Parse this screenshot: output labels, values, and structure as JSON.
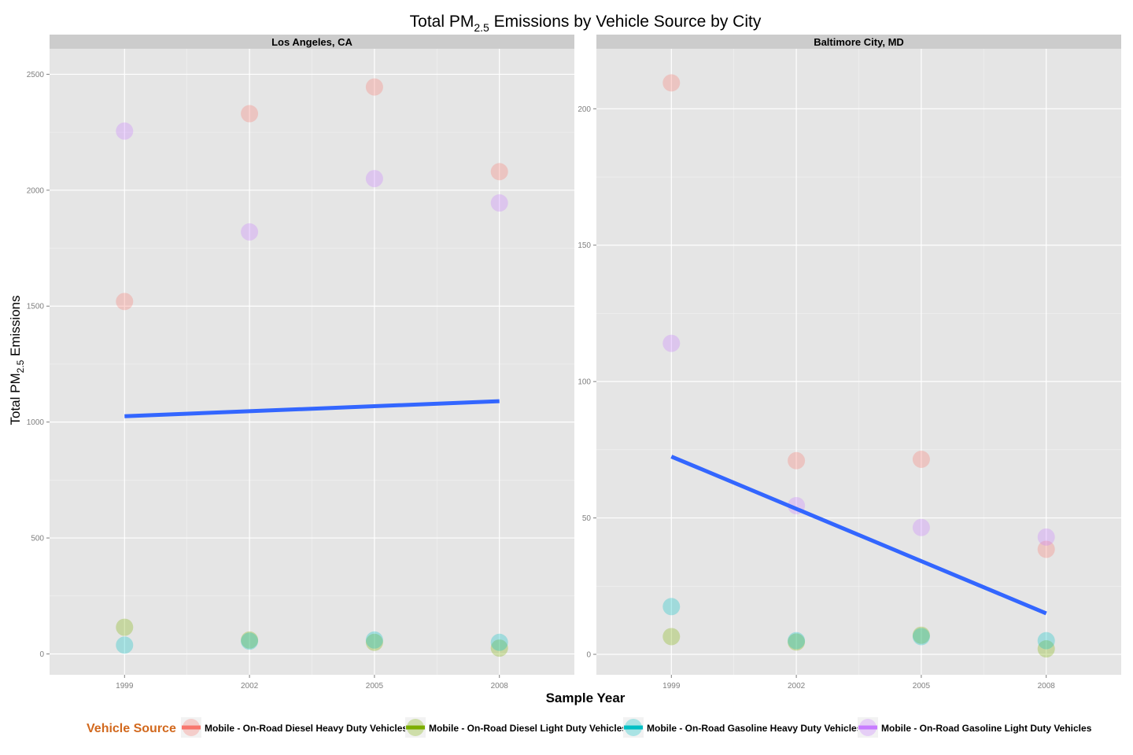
{
  "chart_data": {
    "type": "scatter",
    "title": "Total PM2.5 Emissions by Vehicle Source by City",
    "title_parts": {
      "before": "Total PM",
      "subscript": "2.5",
      "after": " Emissions by Vehicle Source by City"
    },
    "xlabel": "Sample Year",
    "ylabel": "Total PM2.5 Emissions",
    "ylabel_parts": {
      "before": "Total PM",
      "subscript": "2.5",
      "after": " Emissions"
    },
    "grid": true,
    "legend_position": "bottom",
    "legend": {
      "title": "Vehicle Source",
      "title_color": "#d2691e",
      "entries": [
        {
          "name": "Mobile - On-Road Diesel Heavy Duty Vehicles",
          "color": "#f8766d"
        },
        {
          "name": "Mobile - On-Road Diesel Light Duty Vehicles",
          "color": "#7cae00"
        },
        {
          "name": "Mobile - On-Road Gasoline Heavy Duty Vehicles",
          "color": "#00bfc4"
        },
        {
          "name": "Mobile - On-Road Gasoline Light Duty Vehicles",
          "color": "#c77cff"
        }
      ]
    },
    "trend_color": "#3366ff",
    "x_ticks": [
      "1999",
      "2002",
      "2005",
      "2008"
    ],
    "panels": [
      {
        "name": "Los Angeles, CA",
        "xlim": [
          1997.2,
          2009.8
        ],
        "ylim": [
          -90,
          2610
        ],
        "y_ticks": [
          0,
          500,
          1000,
          1500,
          2000,
          2500
        ],
        "y_minor": [
          250,
          750,
          1250,
          1750,
          2250
        ],
        "series": [
          {
            "name": "Mobile - On-Road Diesel Heavy Duty Vehicles",
            "x": [
              1999,
              2002,
              2005,
              2008
            ],
            "values": [
              1520,
              2330,
              2445,
              2080
            ]
          },
          {
            "name": "Mobile - On-Road Diesel Light Duty Vehicles",
            "x": [
              1999,
              2002,
              2005,
              2008
            ],
            "values": [
              115,
              60,
              50,
              25
            ]
          },
          {
            "name": "Mobile - On-Road Gasoline Heavy Duty Vehicles",
            "x": [
              1999,
              2002,
              2005,
              2008
            ],
            "values": [
              38,
              55,
              60,
              50
            ]
          },
          {
            "name": "Mobile - On-Road Gasoline Light Duty Vehicles",
            "x": [
              1999,
              2002,
              2005,
              2008
            ],
            "values": [
              2255,
              1820,
              2050,
              1945
            ]
          }
        ],
        "trend": {
          "x": [
            1999,
            2008
          ],
          "values": [
            1025,
            1090
          ]
        }
      },
      {
        "name": "Baltimore City, MD",
        "xlim": [
          1997.2,
          2009.8
        ],
        "ylim": [
          -7.5,
          222
        ],
        "y_ticks": [
          0,
          50,
          100,
          150,
          200
        ],
        "y_minor": [
          25,
          75,
          125,
          175
        ],
        "series": [
          {
            "name": "Mobile - On-Road Diesel Heavy Duty Vehicles",
            "x": [
              1999,
              2002,
              2005,
              2008
            ],
            "values": [
              209.5,
              71,
              71.5,
              38.5
            ]
          },
          {
            "name": "Mobile - On-Road Diesel Light Duty Vehicles",
            "x": [
              1999,
              2002,
              2005,
              2008
            ],
            "values": [
              6.5,
              4.5,
              7,
              2
            ]
          },
          {
            "name": "Mobile - On-Road Gasoline Heavy Duty Vehicles",
            "x": [
              1999,
              2002,
              2005,
              2008
            ],
            "values": [
              17.5,
              5,
              6.5,
              5
            ]
          },
          {
            "name": "Mobile - On-Road Gasoline Light Duty Vehicles",
            "x": [
              1999,
              2002,
              2005,
              2008
            ],
            "values": [
              114,
              54.5,
              46.5,
              43
            ]
          }
        ],
        "trend": {
          "x": [
            1999,
            2008
          ],
          "values": [
            72.5,
            15
          ]
        }
      }
    ]
  }
}
